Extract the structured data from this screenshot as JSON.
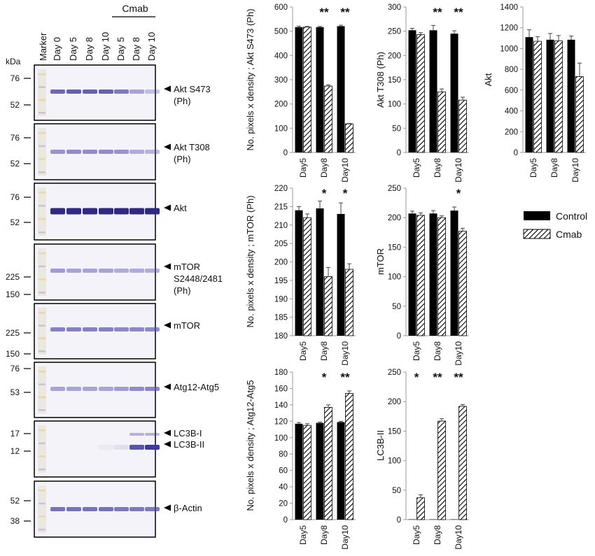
{
  "western_blot": {
    "marker_label": "Marker",
    "kda_label": "kDa",
    "group_label": "Cmab",
    "lanes": [
      "Day 0",
      "Day 5",
      "Day 8",
      "Day 10",
      "Day 5",
      "Day 8",
      "Day 10"
    ],
    "panels": [
      {
        "label": "Akt S473\n(Ph)",
        "ticks": [
          "76",
          "52"
        ],
        "band_color": "#4b45a6",
        "intensities": [
          0.8,
          0.85,
          0.85,
          0.85,
          0.7,
          0.45,
          0.3
        ]
      },
      {
        "label": "Akt T308\n(Ph)",
        "ticks": [
          "76",
          "52"
        ],
        "band_color": "#5a55b4",
        "intensities": [
          0.6,
          0.65,
          0.65,
          0.65,
          0.6,
          0.45,
          0.4
        ]
      },
      {
        "label": "Akt",
        "ticks": [
          "76",
          "52"
        ],
        "band_color": "#2e2a80",
        "intensities": [
          1.0,
          1.0,
          1.0,
          1.0,
          1.0,
          1.0,
          1.0
        ]
      },
      {
        "label": "mTOR\nS2448/2481\n(Ph)",
        "ticks": [
          "225",
          "150"
        ],
        "band_color": "#5a55b4",
        "intensities": [
          0.55,
          0.5,
          0.5,
          0.5,
          0.45,
          0.45,
          0.45
        ]
      },
      {
        "label": "mTOR",
        "ticks": [
          "225",
          "150"
        ],
        "band_color": "#5550b0",
        "intensities": [
          0.7,
          0.7,
          0.7,
          0.7,
          0.65,
          0.65,
          0.65
        ]
      },
      {
        "label": "Atg12-Atg5",
        "ticks": [
          "76",
          "53"
        ],
        "band_color": "#5a55b4",
        "intensities": [
          0.5,
          0.5,
          0.5,
          0.5,
          0.55,
          0.65,
          0.7
        ]
      },
      {
        "label": "LC3B-I\nLC3B-II",
        "ticks": [
          "17",
          "12"
        ],
        "band_color": "#3e3a98",
        "intensities": [
          0.0,
          0.0,
          0.0,
          0.05,
          0.1,
          0.85,
          1.0
        ]
      },
      {
        "label": "β-Actin",
        "ticks": [
          "52",
          "38"
        ],
        "band_color": "#4b45a6",
        "intensities": [
          0.75,
          0.75,
          0.75,
          0.75,
          0.7,
          0.7,
          0.7
        ]
      }
    ]
  },
  "legend": {
    "control": "Control",
    "cmab": "Cmab",
    "control_color": "#000000"
  },
  "chart_data": [
    {
      "type": "bar",
      "ylabel": "No. pixels x density ; Akt S473 (Ph)",
      "categories": [
        "Day5",
        "Day8",
        "Day10"
      ],
      "ylim": [
        0,
        600
      ],
      "yticks": [
        0,
        100,
        200,
        300,
        400,
        500,
        600
      ],
      "series": [
        {
          "name": "Control",
          "values": [
            517,
            517,
            521
          ],
          "errors": [
            4,
            3,
            4
          ]
        },
        {
          "name": "Cmab",
          "values": [
            517,
            274,
            118
          ],
          "errors": [
            3,
            5,
            2
          ]
        }
      ],
      "annotations": [
        "",
        "**",
        "**"
      ]
    },
    {
      "type": "bar",
      "ylabel": "Akt T308 (Ph)",
      "categories": [
        "Day5",
        "Day8",
        "Day10"
      ],
      "ylim": [
        0,
        300
      ],
      "yticks": [
        0,
        50,
        100,
        150,
        200,
        250,
        300
      ],
      "series": [
        {
          "name": "Control",
          "values": [
            252,
            252,
            245
          ],
          "errors": [
            4,
            10,
            6
          ]
        },
        {
          "name": "Cmab",
          "values": [
            243,
            125,
            108
          ],
          "errors": [
            4,
            6,
            6
          ]
        }
      ],
      "annotations": [
        "",
        "**",
        "**"
      ]
    },
    {
      "type": "bar",
      "ylabel": "Akt",
      "categories": [
        "Day5",
        "Day8",
        "Day10"
      ],
      "ylim": [
        0,
        1400
      ],
      "yticks": [
        0,
        200,
        400,
        600,
        800,
        1000,
        1200,
        1400
      ],
      "series": [
        {
          "name": "Control",
          "values": [
            1110,
            1085,
            1085
          ],
          "errors": [
            70,
            60,
            35
          ]
        },
        {
          "name": "Cmab",
          "values": [
            1070,
            1075,
            730
          ],
          "errors": [
            45,
            50,
            130
          ]
        }
      ],
      "annotations": [
        "",
        "",
        ""
      ]
    },
    {
      "type": "bar",
      "ylabel": "No. pixels x density ; mTOR (Ph)",
      "categories": [
        "Day5",
        "Day8",
        "Day10"
      ],
      "ylim": [
        180,
        220
      ],
      "yticks": [
        180,
        185,
        190,
        195,
        200,
        205,
        210,
        215,
        220
      ],
      "series": [
        {
          "name": "Control",
          "values": [
            214,
            214.5,
            213
          ],
          "errors": [
            1,
            2,
            3
          ]
        },
        {
          "name": "Cmab",
          "values": [
            212,
            196,
            198
          ],
          "errors": [
            1,
            2.5,
            1.5
          ]
        }
      ],
      "annotations": [
        "",
        "*",
        "*"
      ]
    },
    {
      "type": "bar",
      "ylabel": "mTOR",
      "categories": [
        "Day5",
        "Day8",
        "Day10"
      ],
      "ylim": [
        0,
        250
      ],
      "yticks": [
        0,
        50,
        100,
        150,
        200,
        250
      ],
      "series": [
        {
          "name": "Control",
          "values": [
            207,
            207,
            212
          ],
          "errors": [
            4,
            5,
            6
          ]
        },
        {
          "name": "Cmab",
          "values": [
            204,
            200,
            177
          ],
          "errors": [
            4,
            3,
            5
          ]
        }
      ],
      "annotations": [
        "",
        "",
        "*"
      ]
    },
    {
      "type": "bar",
      "ylabel": "No. pixels x density ; Atg12-Atg5",
      "categories": [
        "Day5",
        "Day8",
        "Day10"
      ],
      "ylim": [
        0,
        180
      ],
      "yticks": [
        0,
        20,
        40,
        60,
        80,
        100,
        120,
        140,
        160,
        180
      ],
      "series": [
        {
          "name": "Control",
          "values": [
            117,
            118,
            119
          ],
          "errors": [
            1.5,
            1,
            1
          ]
        },
        {
          "name": "Cmab",
          "values": [
            115,
            137,
            154
          ],
          "errors": [
            2,
            3,
            3
          ]
        }
      ],
      "annotations": [
        "",
        "*",
        "**"
      ]
    },
    {
      "type": "bar",
      "ylabel": "LC3B-II",
      "categories": [
        "Day5",
        "Day8",
        "Day10"
      ],
      "ylim": [
        0,
        250
      ],
      "yticks": [
        0,
        50,
        100,
        150,
        200,
        250
      ],
      "series": [
        {
          "name": "Control",
          "values": [
            0.5,
            0.5,
            0.5
          ],
          "errors": [
            0,
            0,
            0
          ]
        },
        {
          "name": "Cmab",
          "values": [
            37,
            167,
            192
          ],
          "errors": [
            5,
            4,
            3
          ]
        }
      ],
      "annotations": [
        "*",
        "**",
        "**"
      ]
    }
  ]
}
